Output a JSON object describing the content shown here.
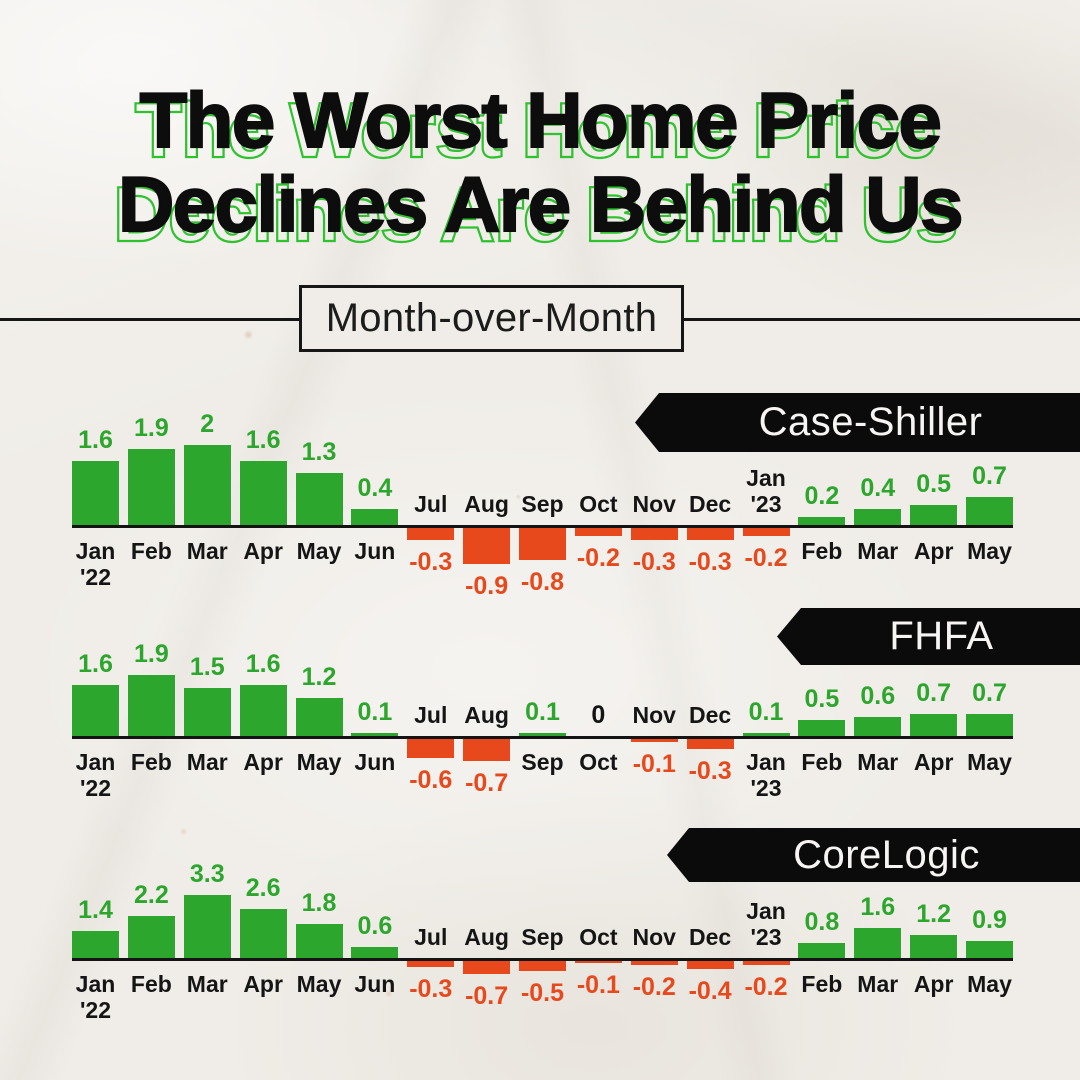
{
  "page": {
    "title_line1": "The Worst Home Price",
    "title_line2": "Declines Are Behind Us",
    "section_label": "Month-over-Month"
  },
  "colors": {
    "paper": "#f0ede8",
    "ink": "#0d0d0d",
    "positive_green": "#2CA62C",
    "negative_red": "#E8491C",
    "title_outline_green": "#2ec22e",
    "banner_bg": "#0b0b0b",
    "banner_text": "#f6f5f3"
  },
  "chart_data": [
    {
      "type": "bar",
      "title": "Case-Shiller",
      "categories": [
        "Jan '22",
        "Feb",
        "Mar",
        "Apr",
        "May",
        "Jun",
        "Jul",
        "Aug",
        "Sep",
        "Oct",
        "Nov",
        "Dec",
        "Jan '23",
        "Feb",
        "Mar",
        "Apr",
        "May"
      ],
      "values": [
        1.6,
        1.9,
        2,
        1.6,
        1.3,
        0.4,
        -0.3,
        -0.9,
        -0.8,
        -0.2,
        -0.3,
        -0.3,
        -0.2,
        0.2,
        0.4,
        0.5,
        0.7
      ],
      "value_labels": [
        "1.6",
        "1.9",
        "2",
        "1.6",
        "1.3",
        "0.4",
        "-0.3",
        "-0.9",
        "-0.8",
        "-0.2",
        "-0.3",
        "-0.3",
        "-0.2",
        "0.2",
        "0.4",
        "0.5",
        "0.7"
      ],
      "xlabel": "",
      "ylabel": "",
      "ylim": [
        -1,
        2.2
      ],
      "grid": false,
      "legend": "none"
    },
    {
      "type": "bar",
      "title": "FHFA",
      "categories": [
        "Jan '22",
        "Feb",
        "Mar",
        "Apr",
        "May",
        "Jun",
        "Jul",
        "Aug",
        "Sep",
        "Oct",
        "Nov",
        "Dec",
        "Jan '23",
        "Feb",
        "Mar",
        "Apr",
        "May"
      ],
      "values": [
        1.6,
        1.9,
        1.5,
        1.6,
        1.2,
        0.1,
        -0.6,
        -0.7,
        0.1,
        0,
        -0.1,
        -0.3,
        0.1,
        0.5,
        0.6,
        0.7,
        0.7
      ],
      "value_labels": [
        "1.6",
        "1.9",
        "1.5",
        "1.6",
        "1.2",
        "0.1",
        "-0.6",
        "-0.7",
        "0.1",
        "0",
        "-0.1",
        "-0.3",
        "0.1",
        "0.5",
        "0.6",
        "0.7",
        "0.7"
      ],
      "xlabel": "",
      "ylabel": "",
      "ylim": [
        -1,
        2
      ],
      "grid": false,
      "legend": "none"
    },
    {
      "type": "bar",
      "title": "CoreLogic",
      "categories": [
        "Jan '22",
        "Feb",
        "Mar",
        "Apr",
        "May",
        "Jun",
        "Jul",
        "Aug",
        "Sep",
        "Oct",
        "Nov",
        "Dec",
        "Jan '23",
        "Feb",
        "Mar",
        "Apr",
        "May"
      ],
      "values": [
        1.4,
        2.2,
        3.3,
        2.6,
        1.8,
        0.6,
        -0.3,
        -0.7,
        -0.5,
        -0.1,
        -0.2,
        -0.4,
        -0.2,
        0.8,
        1.6,
        1.2,
        0.9
      ],
      "value_labels": [
        "1.4",
        "2.2",
        "3.3",
        "2.6",
        "1.8",
        "0.6",
        "-0.3",
        "-0.7",
        "-0.5",
        "-0.1",
        "-0.2",
        "-0.4",
        "-0.2",
        "0.8",
        "1.6",
        "1.2",
        "0.9"
      ],
      "xlabel": "",
      "ylabel": "",
      "ylim": [
        -1,
        3.5
      ],
      "grid": false,
      "legend": "none"
    }
  ]
}
